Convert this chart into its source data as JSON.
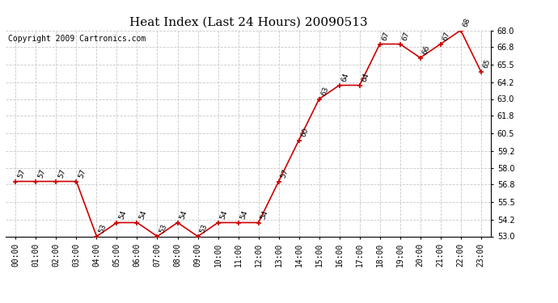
{
  "title": "Heat Index (Last 24 Hours) 20090513",
  "copyright": "Copyright 2009 Cartronics.com",
  "hours": [
    "00:00",
    "01:00",
    "02:00",
    "03:00",
    "04:00",
    "05:00",
    "06:00",
    "07:00",
    "08:00",
    "09:00",
    "10:00",
    "11:00",
    "12:00",
    "13:00",
    "14:00",
    "15:00",
    "16:00",
    "17:00",
    "18:00",
    "19:00",
    "20:00",
    "21:00",
    "22:00",
    "23:00"
  ],
  "values": [
    57,
    57,
    57,
    57,
    53,
    54,
    54,
    53,
    54,
    53,
    54,
    54,
    54,
    57,
    60,
    63,
    64,
    64,
    67,
    67,
    66,
    67,
    68,
    65
  ],
  "ylim_min": 53.0,
  "ylim_max": 68.0,
  "line_color": "#cc0000",
  "marker_color": "#cc0000",
  "bg_color": "#ffffff",
  "grid_color": "#c8c8c8",
  "title_fontsize": 11,
  "copyright_fontsize": 7,
  "label_fontsize": 6.5,
  "tick_fontsize": 7,
  "ytick_labels": [
    "53.0",
    "54.2",
    "55.5",
    "56.8",
    "58.0",
    "59.2",
    "60.5",
    "61.8",
    "63.0",
    "64.2",
    "65.5",
    "66.8",
    "68.0"
  ],
  "ytick_values": [
    53.0,
    54.2,
    55.5,
    56.8,
    58.0,
    59.2,
    60.5,
    61.8,
    63.0,
    64.2,
    65.5,
    66.8,
    68.0
  ]
}
